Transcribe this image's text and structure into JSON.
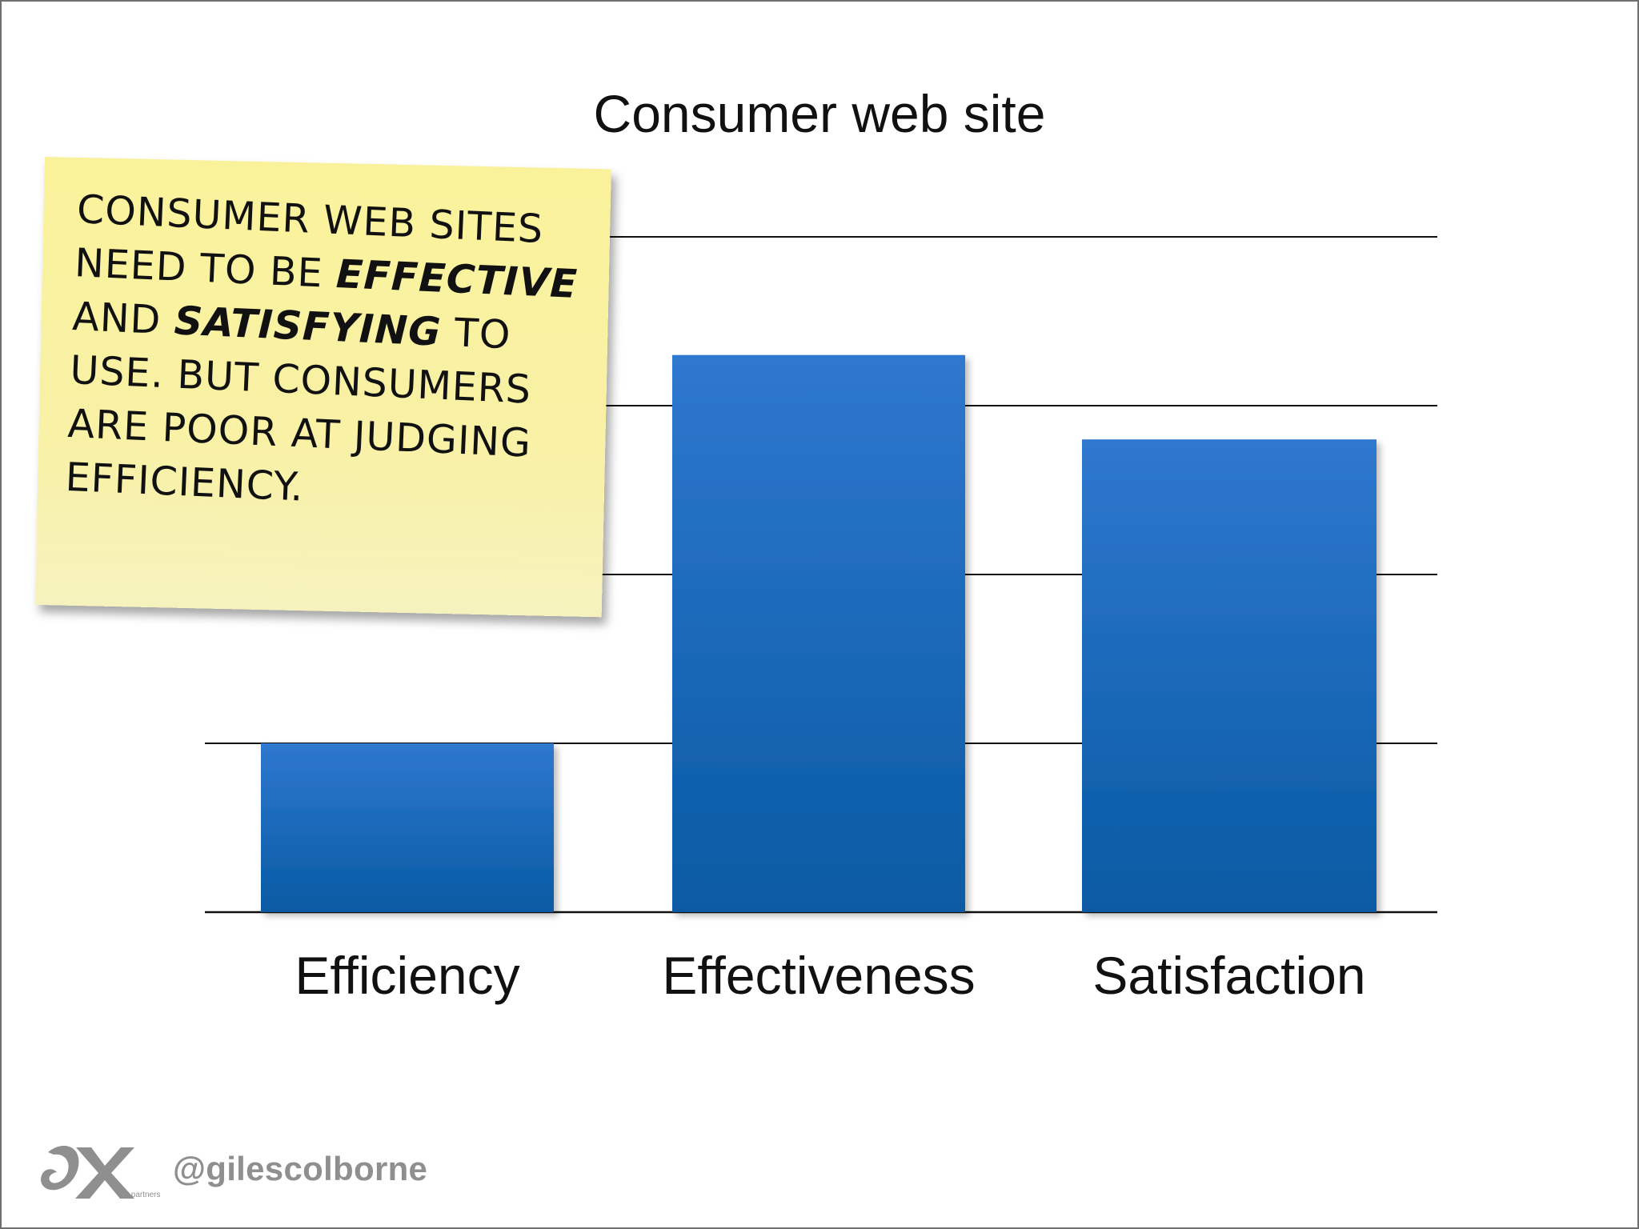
{
  "note": {
    "text_before": "Consumer web sites need to be ",
    "effective": "Effective",
    "middle": " and ",
    "satisfying": "Satisfying",
    "text_after": " to use. But consumers are poor at judging efficiency."
  },
  "footer": {
    "logo_icon": "cx-partners-logo",
    "logo_small_text": "cx partners",
    "handle": "@gilescolborne"
  },
  "colors": {
    "bar_top": "#2f78cf",
    "bar_bottom": "#075aa3",
    "grid": "#111111",
    "note": "#f8f0a0"
  },
  "chart_data": {
    "type": "bar",
    "title": "Consumer web site",
    "categories": [
      "Efficiency",
      "Effectiveness",
      "Satisfaction"
    ],
    "values": [
      1,
      3.3,
      2.8
    ],
    "xlabel": "",
    "ylabel": "",
    "ylim": [
      0,
      4
    ],
    "grid": true,
    "legend": "none"
  }
}
